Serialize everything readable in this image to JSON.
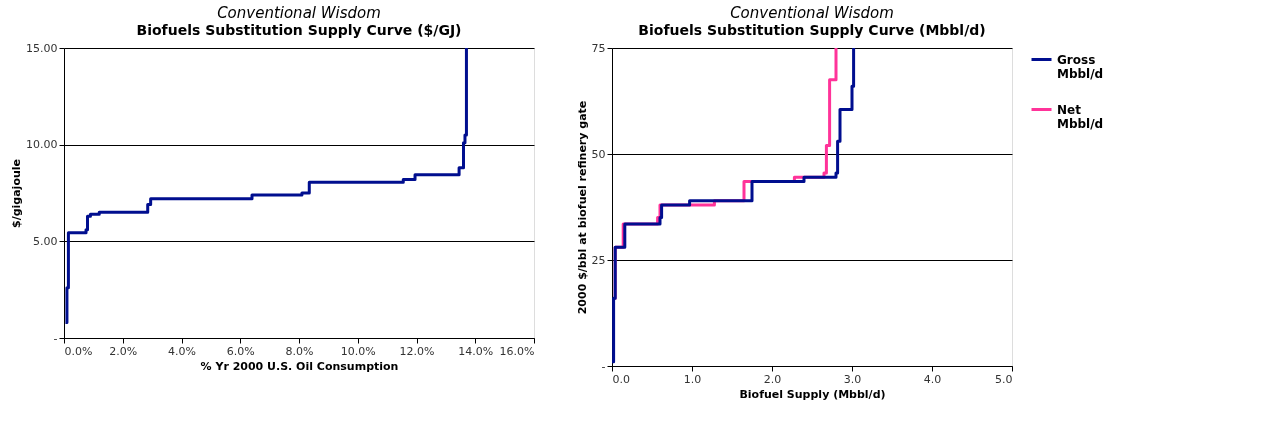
{
  "chart_data": [
    {
      "type": "step",
      "title": "Conventional Wisdom",
      "subtitle": "Biofuels Substitution Supply Curve ($/GJ)",
      "xlabel": "% Yr 2000 U.S. Oil Consumption",
      "ylabel": "$/gigajoule",
      "series": [
        {
          "color": "#000e8f",
          "x": [
            0.05,
            0.1,
            0.15,
            0.75,
            0.8,
            0.9,
            1.2,
            2.85,
            2.95,
            6.4,
            8.1,
            8.35,
            11.55,
            11.95,
            13.45,
            13.6,
            13.65,
            13.7
          ],
          "values": [
            0.8,
            2.6,
            5.45,
            5.6,
            6.3,
            6.4,
            6.5,
            6.9,
            7.2,
            7.4,
            7.5,
            8.05,
            8.2,
            8.45,
            8.8,
            10.1,
            10.5,
            15
          ]
        }
      ],
      "xlim": [
        0,
        16
      ],
      "xticks": [
        {
          "value": 0,
          "label": "0.0%"
        },
        {
          "value": 2,
          "label": "2.0%"
        },
        {
          "value": 4,
          "label": "4.0%"
        },
        {
          "value": 6,
          "label": "6.0%"
        },
        {
          "value": 8,
          "label": "8.0%"
        },
        {
          "value": 10,
          "label": "10.0%"
        },
        {
          "value": 12,
          "label": "12.0%"
        },
        {
          "value": 14,
          "label": "14.0%"
        },
        {
          "value": 16,
          "label": "16.0%"
        }
      ],
      "ylim": [
        0,
        15
      ],
      "yticks": [
        {
          "value": 0,
          "label": "-"
        },
        {
          "value": 5,
          "label": "5.00"
        },
        {
          "value": 10,
          "label": "10.00"
        },
        {
          "value": 15,
          "label": "15.00"
        }
      ],
      "grid": "y"
    },
    {
      "type": "step",
      "title": "Conventional Wisdom",
      "subtitle": "Biofuels Substitution Supply Curve (Mbbl/d)",
      "xlabel": "Biofuel Supply (Mbbl/d)",
      "ylabel": "2000 $/bbl at biofuel refinery gate",
      "series": [
        {
          "name": "Gross Mbbl/d",
          "color": "#000e8f",
          "x": [
            0.0,
            0.02,
            0.04,
            0.16,
            0.6,
            0.62,
            0.97,
            1.75,
            2.4,
            2.8,
            2.82,
            2.85,
            3.0,
            3.02
          ],
          "values": [
            1,
            16,
            28,
            33.5,
            35,
            38,
            39,
            43.5,
            44.5,
            45.5,
            53,
            60.5,
            66,
            75
          ]
        },
        {
          "name": "Net Mbbl/d",
          "color": "#ff3399",
          "x": [
            0.02,
            0.04,
            0.14,
            0.57,
            0.6,
            1.28,
            1.65,
            2.28,
            2.65,
            2.68,
            2.72,
            2.8
          ],
          "values": [
            16,
            28,
            33.5,
            35,
            38,
            39,
            43.5,
            44.5,
            45.5,
            52,
            67.5,
            75
          ]
        }
      ],
      "xlim": [
        0,
        5
      ],
      "xticks": [
        {
          "value": 0,
          "label": "0.0"
        },
        {
          "value": 1,
          "label": "1.0"
        },
        {
          "value": 2,
          "label": "2.0"
        },
        {
          "value": 3,
          "label": "3.0"
        },
        {
          "value": 4,
          "label": "4.0"
        },
        {
          "value": 5,
          "label": "5.0"
        }
      ],
      "ylim": [
        0,
        75
      ],
      "yticks": [
        {
          "value": 0,
          "label": "-"
        },
        25,
        50,
        75
      ],
      "grid": "y",
      "legend": "right"
    }
  ]
}
